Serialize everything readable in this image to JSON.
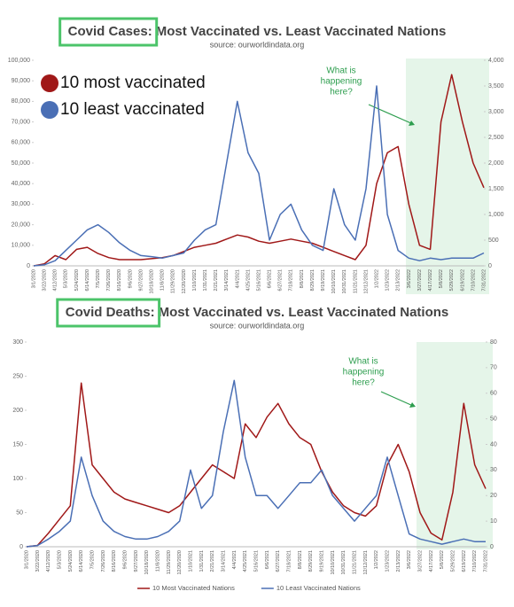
{
  "chart_data": [
    {
      "type": "line",
      "title_label": "Covid Cases:",
      "title": "Most Vaccinated vs. Least Vaccinated Nations",
      "subtitle": "source: ourworldindata.org",
      "annotation": [
        "What is",
        "happening",
        "here?"
      ],
      "legend": "upper left",
      "categories": [
        "3/1/2020",
        "3/22/2020",
        "4/12/2020",
        "5/3/2020",
        "5/24/2020",
        "6/14/2020",
        "7/5/2020",
        "7/26/2020",
        "8/16/2020",
        "9/6/2020",
        "9/27/2020",
        "10/18/2020",
        "11/8/2020",
        "11/29/2020",
        "12/20/2020",
        "1/10/2021",
        "1/31/2021",
        "2/21/2021",
        "3/14/2021",
        "4/4/2021",
        "4/25/2021",
        "5/16/2021",
        "6/6/2021",
        "6/27/2021",
        "7/18/2021",
        "8/8/2021",
        "8/29/2021",
        "9/19/2021",
        "10/10/2021",
        "10/31/2021",
        "11/21/2021",
        "12/12/2021",
        "1/2/2022",
        "1/23/2022",
        "2/13/2022",
        "3/6/2022",
        "3/27/2022",
        "4/17/2022",
        "5/8/2022",
        "5/29/2022",
        "6/19/2022",
        "7/10/2022",
        "7/31/2022"
      ],
      "series": [
        {
          "name": "10 most vaccinated",
          "color": "#a01818",
          "values": [
            0,
            1000,
            5000,
            3000,
            8000,
            9000,
            6000,
            4000,
            3000,
            3000,
            3000,
            3500,
            4000,
            5000,
            7000,
            9000,
            10000,
            11000,
            13000,
            15000,
            14000,
            12000,
            11000,
            12000,
            13000,
            12000,
            11000,
            9000,
            7000,
            5000,
            3000,
            10000,
            40000,
            55000,
            58000,
            30000,
            10000,
            8000,
            70000,
            93000,
            70000,
            50000,
            38000
          ]
        },
        {
          "name": "10 least vaccinated",
          "color": "#4a6fb5",
          "axis": "y2",
          "values": [
            0,
            20,
            100,
            300,
            500,
            700,
            800,
            650,
            450,
            300,
            200,
            180,
            150,
            200,
            250,
            500,
            700,
            800,
            2000,
            3200,
            2200,
            1800,
            500,
            1000,
            1200,
            700,
            400,
            300,
            1500,
            800,
            500,
            1500,
            3500,
            1000,
            300,
            150,
            100,
            150,
            120,
            150,
            150,
            150,
            250
          ]
        }
      ],
      "ylim": [
        0,
        100000
      ],
      "yticks": [
        0,
        {
          "value": 10000,
          "label": "10,000"
        },
        {
          "value": 20000,
          "label": "20,000"
        },
        {
          "value": 30000,
          "label": "30,000"
        },
        {
          "value": 40000,
          "label": "40,000"
        },
        {
          "value": 50000,
          "label": "50,000"
        },
        {
          "value": 60000,
          "label": "60,000"
        },
        {
          "value": 70000,
          "label": "70,000"
        },
        {
          "value": 80000,
          "label": "80,000"
        },
        {
          "value": 90000,
          "label": "90,000"
        },
        {
          "value": 100000,
          "label": "100,000"
        }
      ],
      "y2lim": [
        0,
        4000
      ],
      "y2ticks": [
        0,
        500,
        {
          "value": 1000,
          "label": "1,000"
        },
        {
          "value": 1500,
          "label": "1,500"
        },
        {
          "value": 2000,
          "label": "2,000"
        },
        {
          "value": 2500,
          "label": "2,500"
        },
        {
          "value": 3000,
          "label": "3,000"
        },
        {
          "value": 3500,
          "label": "3,500"
        },
        {
          "value": 4000,
          "label": "4,000"
        }
      ]
    },
    {
      "type": "line",
      "title_label": "Covid Deaths:",
      "title": "Most Vaccinated vs. Least Vaccinated Nations",
      "subtitle": "source: ourworldindata.org",
      "annotation": [
        "What is",
        "happening",
        "here?"
      ],
      "legend": "lower center",
      "categories": [
        "3/1/2020",
        "3/22/2020",
        "4/12/2020",
        "5/3/2020",
        "5/24/2020",
        "6/14/2020",
        "7/5/2020",
        "7/26/2020",
        "8/16/2020",
        "9/6/2020",
        "9/27/2020",
        "10/18/2020",
        "11/8/2020",
        "11/29/2020",
        "12/20/2020",
        "1/10/2021",
        "1/31/2021",
        "2/21/2021",
        "3/14/2021",
        "4/4/2021",
        "4/25/2021",
        "5/16/2021",
        "6/6/2021",
        "6/27/2021",
        "7/18/2021",
        "8/8/2021",
        "8/29/2021",
        "9/19/2021",
        "10/10/2021",
        "10/31/2021",
        "11/21/2021",
        "12/12/2021",
        "1/2/2022",
        "1/23/2022",
        "2/13/2022",
        "3/6/2022",
        "3/27/2022",
        "4/17/2022",
        "5/8/2022",
        "5/29/2022",
        "6/19/2022",
        "7/10/2022",
        "7/31/2022"
      ],
      "series": [
        {
          "name": "10 Most Vaccinated Nations",
          "color": "#a01818",
          "values": [
            0,
            2,
            20,
            40,
            60,
            240,
            120,
            100,
            80,
            70,
            65,
            60,
            55,
            50,
            60,
            80,
            100,
            120,
            110,
            100,
            180,
            160,
            190,
            210,
            180,
            160,
            150,
            110,
            80,
            60,
            50,
            45,
            60,
            120,
            150,
            110,
            50,
            20,
            10,
            80,
            210,
            120,
            85
          ]
        },
        {
          "name": "10 Least Vaccinated Nations",
          "color": "#4a6fb5",
          "axis": "y2",
          "values": [
            0,
            0.5,
            3,
            6,
            10,
            35,
            20,
            10,
            6,
            4,
            3,
            3,
            4,
            6,
            10,
            30,
            15,
            20,
            45,
            65,
            35,
            20,
            20,
            15,
            20,
            25,
            25,
            30,
            20,
            15,
            10,
            15,
            20,
            35,
            20,
            5,
            3,
            2,
            1,
            2,
            3,
            2,
            2
          ]
        }
      ],
      "ylim": [
        0,
        300
      ],
      "yticks": [
        0,
        50,
        100,
        150,
        200,
        250,
        300
      ],
      "y2lim": [
        0,
        80
      ],
      "y2ticks": [
        0,
        10,
        20,
        30,
        40,
        50,
        60,
        70,
        80
      ]
    }
  ]
}
